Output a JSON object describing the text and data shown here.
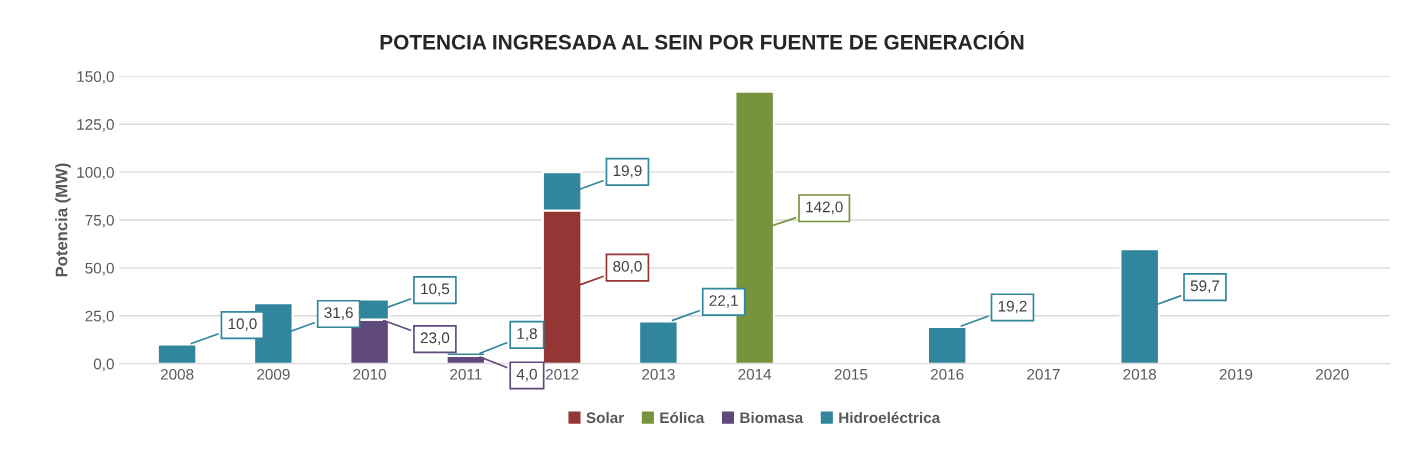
{
  "chart_data": {
    "type": "bar",
    "title": "POTENCIA INGRESADA AL SEIN POR FUENTE DE GENERACIÓN",
    "ylabel": "Potencia (MW)",
    "categories": [
      "2008",
      "2009",
      "2010",
      "2011",
      "2012",
      "2013",
      "2014",
      "2015",
      "2016",
      "2017",
      "2018",
      "2019",
      "2020"
    ],
    "stacked": true,
    "series": [
      {
        "name": "Solar",
        "color": "#943634",
        "values": [
          null,
          null,
          null,
          null,
          80.0,
          null,
          null,
          null,
          null,
          null,
          null,
          null,
          null
        ],
        "value_labels": [
          null,
          null,
          null,
          null,
          "80,0",
          null,
          null,
          null,
          null,
          null,
          null,
          null,
          null
        ]
      },
      {
        "name": "Eólica",
        "color": "#77933c",
        "values": [
          null,
          null,
          null,
          null,
          null,
          null,
          142.0,
          null,
          null,
          null,
          null,
          null,
          null
        ],
        "value_labels": [
          null,
          null,
          null,
          null,
          null,
          null,
          "142,0",
          null,
          null,
          null,
          null,
          null,
          null
        ]
      },
      {
        "name": "Biomasa",
        "color": "#604a7b",
        "values": [
          null,
          null,
          23.0,
          4.0,
          null,
          null,
          null,
          null,
          null,
          null,
          null,
          null,
          null
        ],
        "value_labels": [
          null,
          null,
          "23,0",
          "4,0",
          null,
          null,
          null,
          null,
          null,
          null,
          null,
          null,
          null
        ]
      },
      {
        "name": "Hidroeléctrica",
        "color": "#31859c",
        "values": [
          10.0,
          31.6,
          10.5,
          1.8,
          19.9,
          22.1,
          null,
          null,
          19.2,
          null,
          59.7,
          null,
          null
        ],
        "value_labels": [
          "10,0",
          "31,6",
          "10,5",
          "1,8",
          "19,9",
          "22,1",
          null,
          null,
          "19,2",
          null,
          "59,7",
          null,
          null
        ]
      }
    ],
    "ylim": [
      0,
      150
    ],
    "yticks": [
      {
        "value": 0,
        "label": "0,0"
      },
      {
        "value": 25,
        "label": "25,0"
      },
      {
        "value": 50,
        "label": "50,0"
      },
      {
        "value": 75,
        "label": "75,0"
      },
      {
        "value": 100,
        "label": "100,0"
      },
      {
        "value": 125,
        "label": "125,0"
      },
      {
        "value": 150,
        "label": "150,0"
      }
    ],
    "grid": "y",
    "legend": "bottom"
  }
}
